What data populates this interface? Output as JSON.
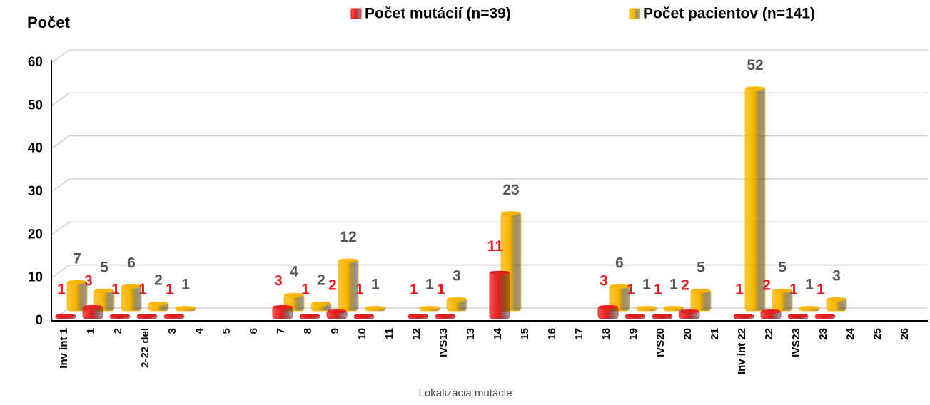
{
  "chart_data": {
    "type": "bar3d",
    "y_label": "Počet",
    "x_label": "Lokalizácia mutácie",
    "categories": [
      "Inv int 1",
      "1",
      "2",
      "2-22 del",
      "3",
      "4",
      "5",
      "6",
      "7",
      "8",
      "9",
      "10",
      "11",
      "12",
      "IVS13",
      "13",
      "14",
      "15",
      "16",
      "17",
      "18",
      "19",
      "IVS20",
      "20",
      "21",
      "Inv int 22",
      "22",
      "IVS23",
      "23",
      "24",
      "25",
      "26"
    ],
    "series": [
      {
        "name": "Počet mutácií (n=39)",
        "color": "#e41e1e",
        "label_color": "#e41e1e",
        "values": [
          1,
          3,
          1,
          1,
          1,
          null,
          null,
          null,
          3,
          1,
          2,
          1,
          null,
          1,
          1,
          null,
          11,
          null,
          null,
          null,
          3,
          1,
          1,
          2,
          null,
          1,
          2,
          1,
          1,
          null,
          null,
          null
        ]
      },
      {
        "name": "Počet pacientov (n=141)",
        "color": "#f7b500",
        "label_color": "#555555",
        "values": [
          7,
          5,
          6,
          2,
          1,
          null,
          null,
          null,
          4,
          2,
          12,
          1,
          null,
          1,
          3,
          null,
          23,
          null,
          null,
          null,
          6,
          1,
          1,
          5,
          null,
          52,
          5,
          1,
          3,
          null,
          null,
          null
        ]
      }
    ],
    "ylim": [
      0,
      60
    ],
    "yticks": [
      0,
      10,
      20,
      30,
      40,
      50,
      60
    ],
    "grid": true,
    "legend": "top"
  }
}
